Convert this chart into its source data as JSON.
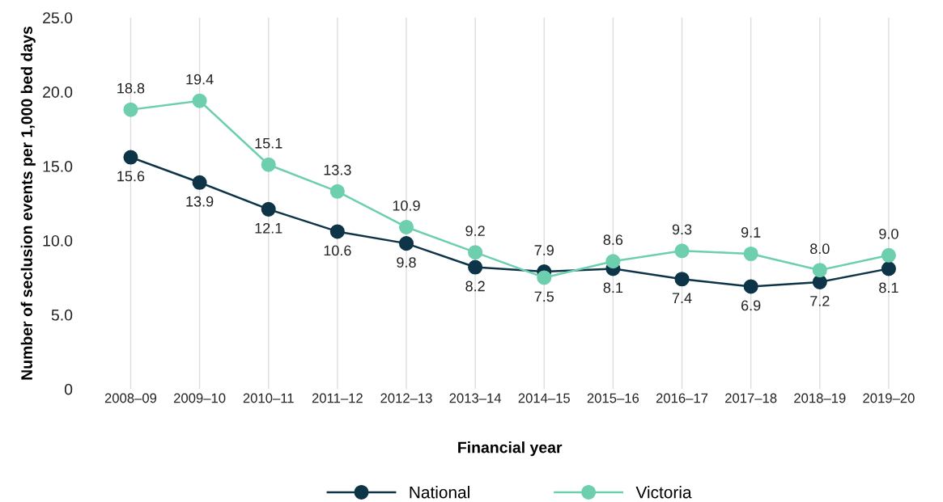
{
  "chart_data": {
    "type": "line",
    "xlabel": "Financial year",
    "ylabel": "Number of seclusion events per 1,000 bed days",
    "categories": [
      "2008–09",
      "2009–10",
      "2010–11",
      "2011–12",
      "2012–13",
      "2013–14",
      "2014–15",
      "2015–16",
      "2016–17",
      "2017–18",
      "2018–19",
      "2019–20"
    ],
    "series": [
      {
        "name": "National",
        "color": "#0d3447",
        "values": [
          15.6,
          13.9,
          12.1,
          10.6,
          9.8,
          8.2,
          7.9,
          8.1,
          7.4,
          6.9,
          7.2,
          8.1
        ],
        "value_labels": [
          "15.6",
          "13.9",
          "12.1",
          "10.6",
          "9.8",
          "8.2",
          "7.9",
          "8.1",
          "7.4",
          "6.9",
          "7.2",
          "8.1"
        ]
      },
      {
        "name": "Victoria",
        "color": "#6dcfae",
        "values": [
          18.8,
          19.4,
          15.1,
          13.3,
          10.9,
          9.2,
          7.5,
          8.6,
          9.3,
          9.1,
          8.0,
          9.0
        ],
        "value_labels": [
          "18.8",
          "19.4",
          "15.1",
          "13.3",
          "10.9",
          "9.2",
          "7.5",
          "8.6",
          "9.3",
          "9.1",
          "8.0",
          "9.0"
        ]
      }
    ],
    "ylim": [
      0,
      25
    ],
    "yticks": [
      0,
      {
        "value": 5,
        "label": "5.0"
      },
      {
        "value": 10,
        "label": "10.0"
      },
      {
        "value": 15,
        "label": "15.0"
      },
      {
        "value": 20,
        "label": "20.0"
      },
      {
        "value": 25,
        "label": "25.0"
      }
    ],
    "grid": "x",
    "legend": "bottom",
    "marker": "circle",
    "line_style": "solid"
  }
}
